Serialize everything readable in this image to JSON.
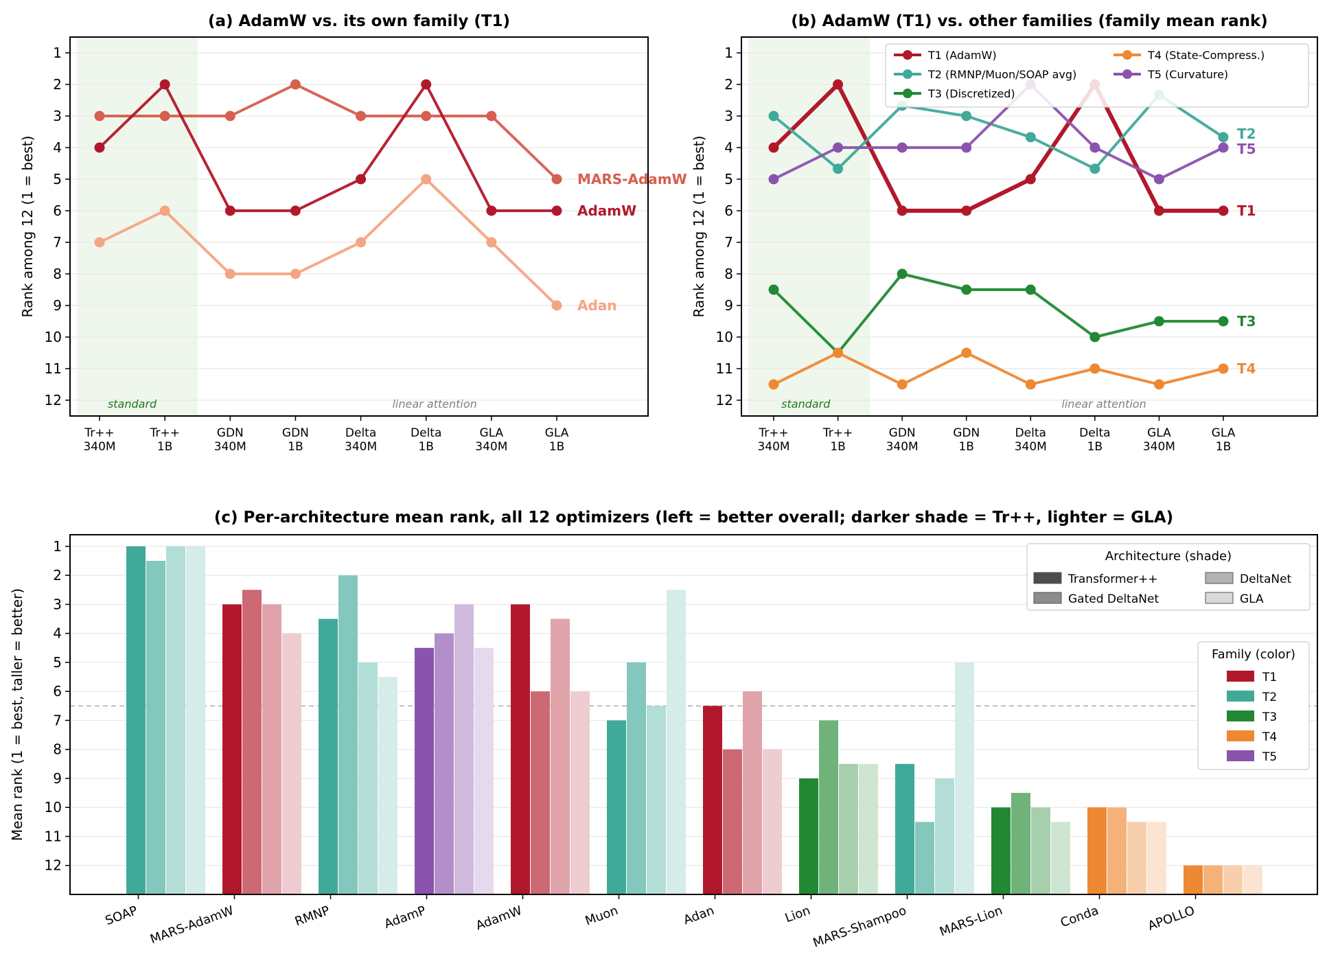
{
  "chart_data": [
    {
      "type": "line",
      "panel": "a",
      "title": "(a) AdamW vs. its own family (T1)",
      "ylabel": "Rank among 12 (1 = best)",
      "ylim": [
        12.5,
        0.5
      ],
      "y_ticks": [
        1,
        2,
        3,
        4,
        5,
        6,
        7,
        8,
        9,
        10,
        11,
        12
      ],
      "categories": [
        [
          "Tr++",
          "340M"
        ],
        [
          "Tr++",
          "1B"
        ],
        [
          "GDN",
          "340M"
        ],
        [
          "GDN",
          "1B"
        ],
        [
          "Delta",
          "340M"
        ],
        [
          "Delta",
          "1B"
        ],
        [
          "GLA",
          "340M"
        ],
        [
          "GLA",
          "1B"
        ]
      ],
      "region_labels": {
        "standard": "standard",
        "linear": "linear attention"
      },
      "series": [
        {
          "name": "MARS-AdamW",
          "color": "#d65f4e",
          "values": [
            3,
            3,
            3,
            2,
            3,
            3,
            3,
            5
          ]
        },
        {
          "name": "AdamW",
          "color": "#b2182b",
          "values": [
            4,
            2,
            6,
            6,
            5,
            2,
            6,
            6
          ]
        },
        {
          "name": "Adan",
          "color": "#f4a582",
          "values": [
            7,
            6,
            8,
            8,
            7,
            5,
            7,
            9
          ]
        }
      ]
    },
    {
      "type": "line",
      "panel": "b",
      "title": "(b) AdamW (T1) vs. other families (family mean rank)",
      "ylabel": "Rank among 12 (1 = best)",
      "ylim": [
        12.5,
        0.5
      ],
      "y_ticks": [
        1,
        2,
        3,
        4,
        5,
        6,
        7,
        8,
        9,
        10,
        11,
        12
      ],
      "categories": [
        [
          "Tr++",
          "340M"
        ],
        [
          "Tr++",
          "1B"
        ],
        [
          "GDN",
          "340M"
        ],
        [
          "GDN",
          "1B"
        ],
        [
          "Delta",
          "340M"
        ],
        [
          "Delta",
          "1B"
        ],
        [
          "GLA",
          "340M"
        ],
        [
          "GLA",
          "1B"
        ]
      ],
      "region_labels": {
        "standard": "standard",
        "linear": "linear attention"
      },
      "legend": [
        "T1 (AdamW)",
        "T2 (RMNP/Muon/SOAP avg)",
        "T3 (Discretized)",
        "T4 (State-Compress.)",
        "T5 (Curvature)"
      ],
      "series": [
        {
          "name": "T1",
          "color": "#b2182b",
          "values": [
            4,
            2,
            6,
            6,
            5,
            2,
            6,
            6
          ]
        },
        {
          "name": "T2",
          "color": "#41a99a",
          "values": [
            3,
            4.67,
            2.67,
            3,
            3.67,
            4.67,
            2.33,
            3.67
          ]
        },
        {
          "name": "T3",
          "color": "#228833",
          "values": [
            8.5,
            10.5,
            8,
            8.5,
            8.5,
            10,
            9.5,
            9.5
          ]
        },
        {
          "name": "T4",
          "color": "#ee8833",
          "values": [
            11.5,
            10.5,
            11.5,
            10.5,
            11.5,
            11,
            11.5,
            11
          ]
        },
        {
          "name": "T5",
          "color": "#8a53ad",
          "values": [
            5,
            4,
            4,
            4,
            2,
            4,
            5,
            4
          ]
        }
      ]
    },
    {
      "type": "bar",
      "panel": "c",
      "title": "(c) Per-architecture mean rank, all 12 optimizers (left = better overall; darker shade = Tr++, lighter = GLA)",
      "ylabel": "Mean rank (1 = best, taller = better)",
      "ylim": [
        13.0,
        0.6
      ],
      "y_ticks": [
        1,
        2,
        3,
        4,
        5,
        6,
        7,
        8,
        9,
        10,
        11,
        12
      ],
      "reference_line": 6.5,
      "architectures": [
        "Transformer++",
        "Gated DeltaNet",
        "DeltaNet",
        "GLA"
      ],
      "arch_legend_title": "Architecture (shade)",
      "family_legend_title": "Family (color)",
      "families": [
        {
          "name": "T1",
          "color": "#b2182b"
        },
        {
          "name": "T2",
          "color": "#41a99a"
        },
        {
          "name": "T3",
          "color": "#228833"
        },
        {
          "name": "T4",
          "color": "#ee8833"
        },
        {
          "name": "T5",
          "color": "#8a53ad"
        }
      ],
      "categories": [
        "SOAP",
        "MARS-AdamW",
        "RMNP",
        "AdamP",
        "AdamW",
        "Muon",
        "Adan",
        "Lion",
        "MARS-Shampoo",
        "MARS-Lion",
        "Conda",
        "APOLLO"
      ],
      "category_family": [
        "T2",
        "T1",
        "T2",
        "T5",
        "T1",
        "T2",
        "T1",
        "T3",
        "T2",
        "T3",
        "T4",
        "T4"
      ],
      "values": [
        [
          1,
          1.5,
          1,
          1
        ],
        [
          3,
          2.5,
          3,
          4
        ],
        [
          3.5,
          2,
          5,
          5.5
        ],
        [
          4.5,
          4,
          3,
          4.5
        ],
        [
          3,
          6,
          3.5,
          6
        ],
        [
          7,
          5,
          6.5,
          2.5
        ],
        [
          6.5,
          8,
          6,
          8
        ],
        [
          9,
          7,
          8.5,
          8.5
        ],
        [
          8.5,
          10.5,
          9,
          5
        ],
        [
          10,
          9.5,
          10,
          10.5
        ],
        [
          10,
          10,
          10.5,
          10.5
        ],
        [
          12,
          12,
          12,
          12
        ]
      ]
    }
  ]
}
